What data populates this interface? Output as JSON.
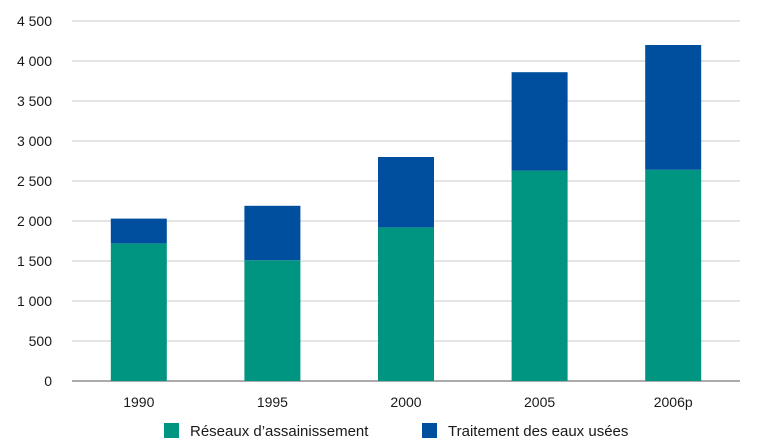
{
  "chart_data": {
    "type": "bar",
    "stacked": true,
    "title": "",
    "xlabel": "",
    "ylabel": "",
    "categories": [
      "1990",
      "1995",
      "2000",
      "2005",
      "2006p"
    ],
    "series": [
      {
        "name": "Réseaux d’assainissement",
        "color": "#009580",
        "values": [
          1720,
          1510,
          1920,
          2630,
          2640
        ]
      },
      {
        "name": "Traitement des eaux usées",
        "color": "#004f9e",
        "values": [
          310,
          680,
          880,
          1230,
          1560
        ]
      }
    ],
    "ylim": [
      0,
      4500
    ],
    "yticks": [
      0,
      500,
      1000,
      1500,
      2000,
      2500,
      3000,
      3500,
      4000,
      4500
    ],
    "ytick_labels": [
      "0",
      "500",
      "1 000",
      "1 500",
      "2 000",
      "2 500",
      "3 000",
      "3 500",
      "4 000",
      "4 500"
    ],
    "grid": true,
    "legend_position": "bottom"
  }
}
